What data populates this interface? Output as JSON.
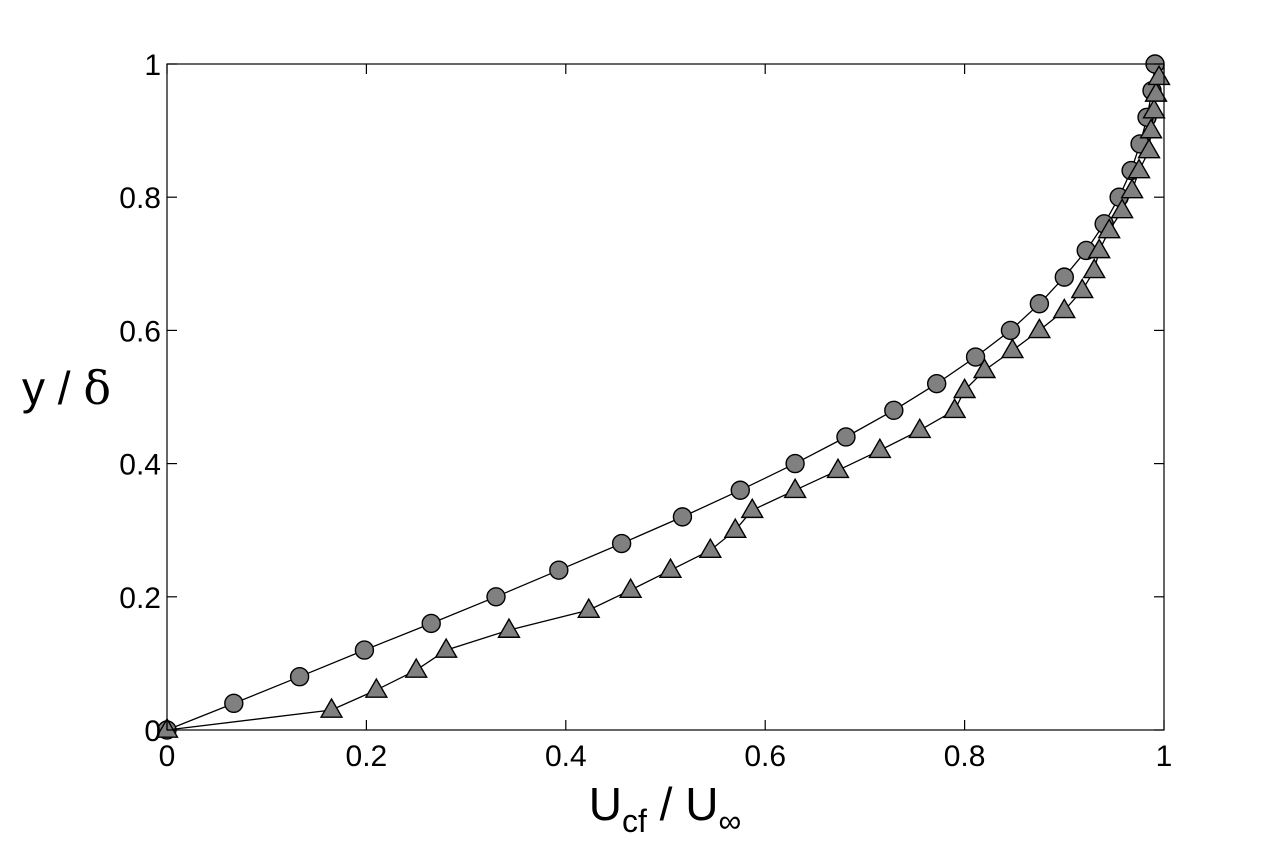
{
  "chart_data": {
    "type": "line",
    "title": "",
    "xlabel": {
      "main": "U",
      "main_sub": "cf",
      "separator": " / ",
      "denom": "U",
      "denom_sub": "∞"
    },
    "ylabel": {
      "var": "y",
      "separator": " / ",
      "symbol": "δ"
    },
    "xlim": [
      0,
      1
    ],
    "ylim": [
      0,
      1
    ],
    "xticks": [
      0,
      0.2,
      0.4,
      0.6,
      0.8,
      1
    ],
    "xtick_labels": [
      "0",
      "0.2",
      "0.4",
      "0.6",
      "0.8",
      "1"
    ],
    "yticks": [
      0,
      0.2,
      0.4,
      0.6,
      0.8,
      1
    ],
    "ytick_labels": [
      "0",
      "0.2",
      "0.4",
      "0.6",
      "0.8",
      "1"
    ],
    "grid": false,
    "series": [
      {
        "marker": "circle",
        "color": "#808080",
        "points": [
          [
            0.0,
            0.0
          ],
          [
            0.067,
            0.04
          ],
          [
            0.133,
            0.08
          ],
          [
            0.198,
            0.12
          ],
          [
            0.265,
            0.16
          ],
          [
            0.33,
            0.2
          ],
          [
            0.393,
            0.24
          ],
          [
            0.456,
            0.28
          ],
          [
            0.517,
            0.32
          ],
          [
            0.575,
            0.36
          ],
          [
            0.63,
            0.4
          ],
          [
            0.681,
            0.44
          ],
          [
            0.729,
            0.48
          ],
          [
            0.772,
            0.52
          ],
          [
            0.811,
            0.56
          ],
          [
            0.846,
            0.6
          ],
          [
            0.875,
            0.64
          ],
          [
            0.9,
            0.68
          ],
          [
            0.922,
            0.72
          ],
          [
            0.94,
            0.76
          ],
          [
            0.955,
            0.8
          ],
          [
            0.967,
            0.84
          ],
          [
            0.976,
            0.88
          ],
          [
            0.983,
            0.92
          ],
          [
            0.988,
            0.96
          ],
          [
            0.991,
            1.0
          ]
        ]
      },
      {
        "marker": "triangle",
        "color": "#808080",
        "points": [
          [
            0.0,
            0.0
          ],
          [
            0.165,
            0.03
          ],
          [
            0.21,
            0.06
          ],
          [
            0.25,
            0.09
          ],
          [
            0.28,
            0.12
          ],
          [
            0.343,
            0.15
          ],
          [
            0.423,
            0.18
          ],
          [
            0.465,
            0.21
          ],
          [
            0.505,
            0.24
          ],
          [
            0.545,
            0.27
          ],
          [
            0.57,
            0.3
          ],
          [
            0.587,
            0.33
          ],
          [
            0.63,
            0.36
          ],
          [
            0.673,
            0.39
          ],
          [
            0.715,
            0.42
          ],
          [
            0.755,
            0.45
          ],
          [
            0.79,
            0.48
          ],
          [
            0.8,
            0.51
          ],
          [
            0.82,
            0.54
          ],
          [
            0.848,
            0.57
          ],
          [
            0.875,
            0.6
          ],
          [
            0.9,
            0.63
          ],
          [
            0.918,
            0.66
          ],
          [
            0.93,
            0.69
          ],
          [
            0.935,
            0.72
          ],
          [
            0.945,
            0.75
          ],
          [
            0.958,
            0.78
          ],
          [
            0.968,
            0.81
          ],
          [
            0.975,
            0.84
          ],
          [
            0.985,
            0.87
          ],
          [
            0.987,
            0.9
          ],
          [
            0.99,
            0.93
          ],
          [
            0.992,
            0.955
          ],
          [
            0.995,
            0.98
          ]
        ]
      }
    ]
  }
}
